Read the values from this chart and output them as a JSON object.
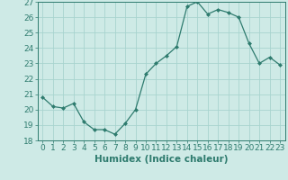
{
  "xlabel": "Humidex (Indice chaleur)",
  "ylabel": "",
  "x": [
    0,
    1,
    2,
    3,
    4,
    5,
    6,
    7,
    8,
    9,
    10,
    11,
    12,
    13,
    14,
    15,
    16,
    17,
    18,
    19,
    20,
    21,
    22,
    23
  ],
  "y": [
    20.8,
    20.2,
    20.1,
    20.4,
    19.2,
    18.7,
    18.7,
    18.4,
    19.1,
    20.0,
    22.3,
    23.0,
    23.5,
    24.1,
    26.7,
    27.0,
    26.2,
    26.5,
    26.3,
    26.0,
    24.3,
    23.0,
    23.4,
    22.9
  ],
  "ylim": [
    18,
    27
  ],
  "xlim": [
    -0.5,
    23.5
  ],
  "line_color": "#2e7b6e",
  "marker": "D",
  "marker_size": 2,
  "bg_color": "#ceeae6",
  "grid_color": "#a8d4cf",
  "tick_label_fontsize": 6.5,
  "xlabel_fontsize": 7.5,
  "yticks": [
    18,
    19,
    20,
    21,
    22,
    23,
    24,
    25,
    26,
    27
  ],
  "xticks": [
    0,
    1,
    2,
    3,
    4,
    5,
    6,
    7,
    8,
    9,
    10,
    11,
    12,
    13,
    14,
    15,
    16,
    17,
    18,
    19,
    20,
    21,
    22,
    23
  ]
}
